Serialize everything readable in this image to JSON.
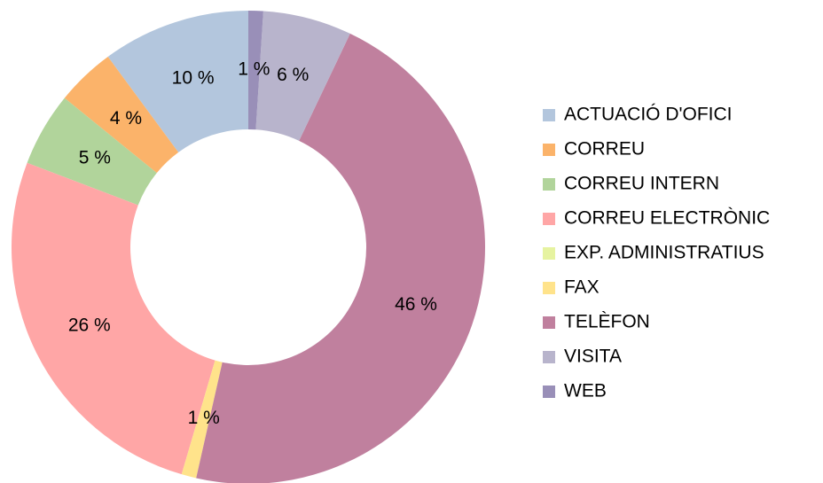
{
  "chart_data": {
    "type": "donut",
    "categories": [
      "ACTUACIÓ D'OFICI",
      "CORREU",
      "CORREU INTERN",
      "CORREU ELECTRÒNIC",
      "EXP. ADMINISTRATIUS",
      "FAX",
      "TELÈFON",
      "VISITA",
      "WEB"
    ],
    "values": [
      10,
      4,
      5,
      26,
      0,
      1,
      46,
      6,
      1
    ],
    "value_labels": [
      "10 %",
      "4 %",
      "5 %",
      "26 %",
      null,
      "1 %",
      "46 %",
      "6 %",
      "1 %"
    ],
    "colors": [
      "#b3c6dd",
      "#fbb36a",
      "#b1d49b",
      "#ffa6a6",
      "#e6f3a0",
      "#ffe38b",
      "#c0809e",
      "#b8b4cc",
      "#998fb8"
    ],
    "legend": "right"
  }
}
